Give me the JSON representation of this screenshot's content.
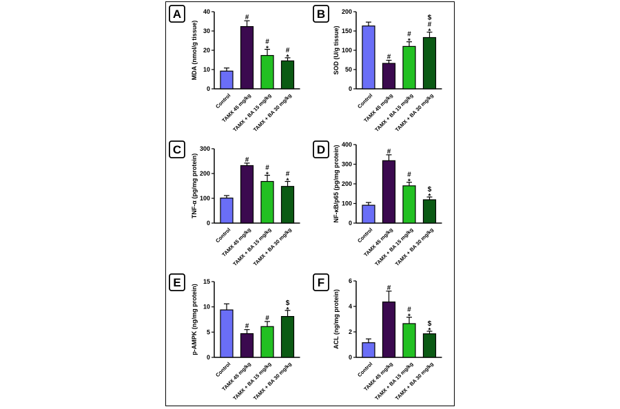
{
  "colors": [
    "#6a6ef7",
    "#3b0a4f",
    "#22c022",
    "#0b5a14"
  ],
  "chart_data": [
    {
      "panel": "A",
      "type": "bar",
      "ylabel": "MDA (nmol/g tissue)",
      "categories": [
        "Control",
        "TAMX 45 mg/kg",
        "TAMX + BA 15 mg/kg",
        "TAMX + BA 30 mg/kg"
      ],
      "values": [
        9.2,
        32.3,
        17.3,
        14.5
      ],
      "errors": [
        1.6,
        3.0,
        3.2,
        1.6
      ],
      "significance": [
        [],
        [
          "#"
        ],
        [
          "#",
          "*"
        ],
        [
          "#",
          "*"
        ]
      ],
      "ylim": [
        0,
        40
      ],
      "yticks": [
        0,
        10,
        20,
        30,
        40
      ]
    },
    {
      "panel": "B",
      "type": "bar",
      "ylabel": "SOD (U/g tissue)",
      "categories": [
        "Control",
        "TAMX 45 mg/kg",
        "TAMX + BA 15 mg/kg",
        "TAMX + BA 30 mg/kg"
      ],
      "values": [
        163,
        66,
        110,
        133
      ],
      "errors": [
        10,
        8,
        12,
        14
      ],
      "significance": [
        [],
        [
          "#"
        ],
        [
          "#",
          "*"
        ],
        [
          "$",
          "#",
          "*"
        ]
      ],
      "ylim": [
        0,
        200
      ],
      "yticks": [
        0,
        50,
        100,
        150,
        200
      ]
    },
    {
      "panel": "C",
      "type": "bar",
      "ylabel": "TNF-α (pg/mg protein)",
      "categories": [
        "Control",
        "TAMX 45 mg/kg",
        "TAMX + BA 15 mg/kg",
        "TAMX + BA 30 mg/kg"
      ],
      "values": [
        101,
        232,
        168,
        148
      ],
      "errors": [
        10,
        10,
        25,
        20
      ],
      "significance": [
        [],
        [
          "#"
        ],
        [
          "#",
          "*"
        ],
        [
          "#",
          "*"
        ]
      ],
      "ylim": [
        0,
        300
      ],
      "yticks": [
        0,
        100,
        200,
        300
      ]
    },
    {
      "panel": "D",
      "type": "bar",
      "ylabel": "NF-κB/p65 (pg/mg protein)",
      "categories": [
        "Control",
        "TAMX 45 mg/kg",
        "TAMX + BA 15 mg/kg",
        "TAMX + BA 30 mg/kg"
      ],
      "values": [
        91,
        318,
        190,
        119
      ],
      "errors": [
        14,
        30,
        18,
        14
      ],
      "significance": [
        [],
        [
          "#"
        ],
        [
          "#",
          "*"
        ],
        [
          "$",
          "*"
        ]
      ],
      "ylim": [
        0,
        400
      ],
      "yticks": [
        0,
        100,
        200,
        300,
        400
      ]
    },
    {
      "panel": "E",
      "type": "bar",
      "ylabel": "p-AMPK (ng/mg protein)",
      "categories": [
        "Control",
        "TAMX 45 mg/kg",
        "TAMX + BA 15 mg/kg",
        "TAMX + BA 30 mg/kg"
      ],
      "values": [
        9.4,
        4.7,
        6.1,
        8.1
      ],
      "errors": [
        1.2,
        0.8,
        1.0,
        1.2
      ],
      "significance": [
        [],
        [
          "#"
        ],
        [
          "#"
        ],
        [
          "$",
          "*"
        ]
      ],
      "ylim": [
        0,
        15
      ],
      "yticks": [
        0,
        5,
        10,
        15
      ]
    },
    {
      "panel": "F",
      "type": "bar",
      "ylabel": "ACL (ng/mg protein)",
      "categories": [
        "Control",
        "TAMX 45 mg/kg",
        "TAMX + BA 15 mg/kg",
        "TAMX + BA 30 mg/kg"
      ],
      "values": [
        1.15,
        4.35,
        2.65,
        1.85
      ],
      "errors": [
        0.3,
        0.85,
        0.5,
        0.2
      ],
      "significance": [
        [],
        [
          "#"
        ],
        [
          "#",
          "*"
        ],
        [
          "$",
          "*"
        ]
      ],
      "ylim": [
        0,
        6
      ],
      "yticks": [
        0,
        2,
        4,
        6
      ]
    }
  ]
}
